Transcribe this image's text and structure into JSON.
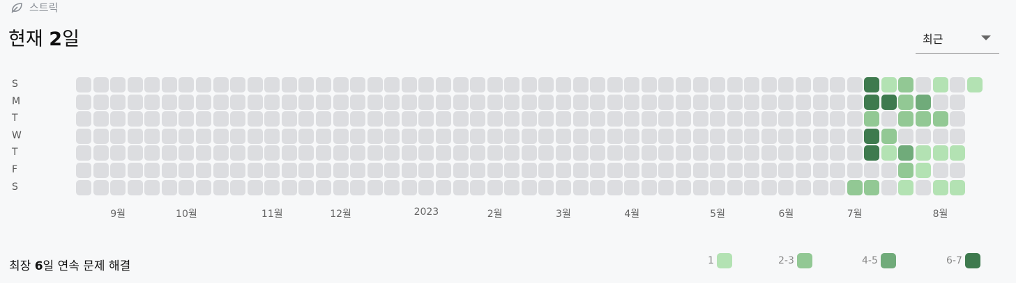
{
  "header": {
    "streak_label": "스트릭",
    "icon": "leaf-icon"
  },
  "title": {
    "prefix": "현재 ",
    "value": "2",
    "suffix": "일"
  },
  "period_select": {
    "selected": "최근"
  },
  "day_labels": [
    "S",
    "M",
    "T",
    "W",
    "T",
    "F",
    "S"
  ],
  "month_labels": [
    {
      "label": "9월",
      "week": 2
    },
    {
      "label": "10월",
      "week": 6
    },
    {
      "label": "11월",
      "week": 11
    },
    {
      "label": "12월",
      "week": 15
    },
    {
      "label": "2023",
      "week": 20
    },
    {
      "label": "2월",
      "week": 24
    },
    {
      "label": "3월",
      "week": 28
    },
    {
      "label": "4월",
      "week": 32
    },
    {
      "label": "5월",
      "week": 37
    },
    {
      "label": "6월",
      "week": 41
    },
    {
      "label": "7월",
      "week": 45
    },
    {
      "label": "8월",
      "week": 50
    }
  ],
  "colors": {
    "empty": "#dcdde0",
    "level1": "#b3e2b3",
    "level2": "#92c894",
    "level3": "#70ab7a",
    "level4": "#3e7a4e"
  },
  "heatmap": {
    "weeks": 53,
    "last_week_days": 1,
    "active_cells": [
      {
        "week": 45,
        "day": 6,
        "level": 2
      },
      {
        "week": 46,
        "day": 0,
        "level": 4
      },
      {
        "week": 46,
        "day": 1,
        "level": 4
      },
      {
        "week": 46,
        "day": 2,
        "level": 2
      },
      {
        "week": 46,
        "day": 3,
        "level": 4
      },
      {
        "week": 46,
        "day": 4,
        "level": 4
      },
      {
        "week": 46,
        "day": 6,
        "level": 2
      },
      {
        "week": 47,
        "day": 0,
        "level": 1
      },
      {
        "week": 47,
        "day": 1,
        "level": 4
      },
      {
        "week": 47,
        "day": 3,
        "level": 2
      },
      {
        "week": 47,
        "day": 4,
        "level": 1
      },
      {
        "week": 48,
        "day": 0,
        "level": 2
      },
      {
        "week": 48,
        "day": 1,
        "level": 2
      },
      {
        "week": 48,
        "day": 2,
        "level": 2
      },
      {
        "week": 48,
        "day": 4,
        "level": 3
      },
      {
        "week": 48,
        "day": 5,
        "level": 2
      },
      {
        "week": 48,
        "day": 6,
        "level": 1
      },
      {
        "week": 49,
        "day": 1,
        "level": 3
      },
      {
        "week": 49,
        "day": 2,
        "level": 2
      },
      {
        "week": 49,
        "day": 4,
        "level": 1
      },
      {
        "week": 49,
        "day": 5,
        "level": 1
      },
      {
        "week": 50,
        "day": 0,
        "level": 1
      },
      {
        "week": 50,
        "day": 2,
        "level": 2
      },
      {
        "week": 50,
        "day": 4,
        "level": 1
      },
      {
        "week": 50,
        "day": 6,
        "level": 1
      },
      {
        "week": 51,
        "day": 4,
        "level": 1
      },
      {
        "week": 51,
        "day": 6,
        "level": 1
      },
      {
        "week": 52,
        "day": 0,
        "level": 1
      }
    ]
  },
  "footer": {
    "prefix": "최장 ",
    "value": "6",
    "suffix": "일 연속 문제 해결"
  },
  "legend": [
    {
      "label": "1",
      "level": 1
    },
    {
      "label": "2-3",
      "level": 2
    },
    {
      "label": "4-5",
      "level": 3
    },
    {
      "label": "6-7",
      "level": 4
    }
  ]
}
